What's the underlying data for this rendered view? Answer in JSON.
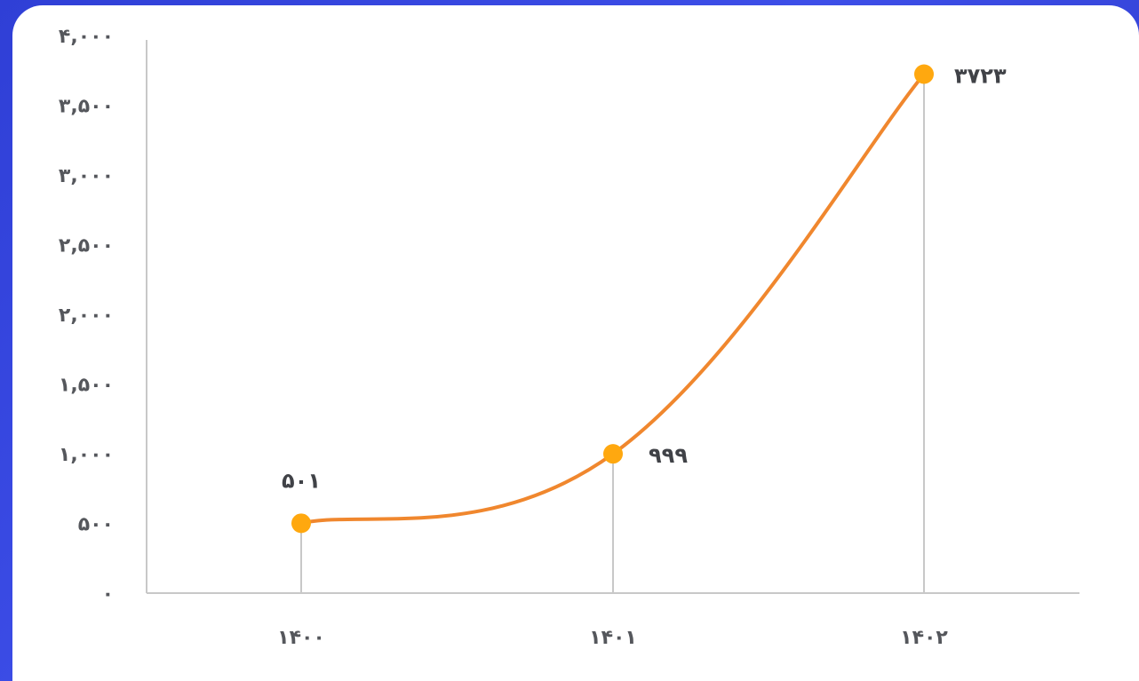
{
  "colors": {
    "background": "#3a4be3",
    "card": "#ffffff",
    "line": "#f0872e",
    "marker": "#ffa80f",
    "axis": "#c8c8c8",
    "text": "#55575c"
  },
  "chart_data": {
    "type": "line",
    "title": "",
    "xlabel": "",
    "ylabel": "",
    "categories": [
      "۱۴۰۰",
      "۱۴۰۱",
      "۱۴۰۲"
    ],
    "series": [
      {
        "values": [
          501,
          999,
          3723
        ],
        "data_labels": [
          "۵۰۱",
          "۹۹۹",
          "۳۷۲۳"
        ],
        "smooth": true,
        "markers": true
      }
    ],
    "ylim": [
      0,
      4000
    ],
    "y_ticks": [
      0,
      500,
      1000,
      1500,
      2000,
      2500,
      3000,
      3500,
      4000
    ],
    "y_tick_labels": [
      "۰",
      "۵۰۰",
      "۱,۰۰۰",
      "۱,۵۰۰",
      "۲,۰۰۰",
      "۲,۵۰۰",
      "۳,۰۰۰",
      "۳,۵۰۰",
      "۴,۰۰۰"
    ],
    "grid": false,
    "drop_lines": true,
    "legend": "none"
  }
}
